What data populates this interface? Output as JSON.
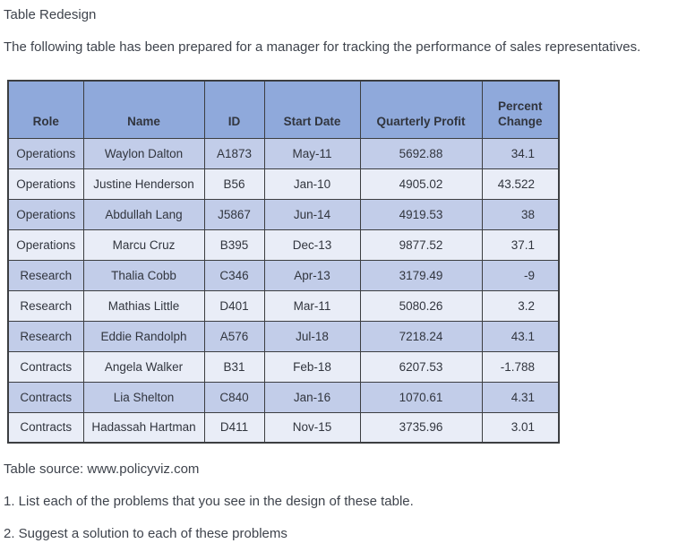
{
  "page": {
    "title": "Table Redesign",
    "intro": "The following table has been prepared for a manager for tracking the performance of sales representatives.",
    "source": "Table source: www.policyviz.com",
    "question_1": "1. List each of the problems that you see in the design of these table.",
    "question_2": "2. Suggest a solution to each of these problems"
  },
  "table": {
    "columns": [
      "Role",
      "Name",
      "ID",
      "Start Date",
      "Quarterly Profit",
      "Percent Change"
    ],
    "rows": [
      [
        "Operations",
        "Waylon Dalton",
        "A1873",
        "May-11",
        "5692.88",
        "34.1"
      ],
      [
        "Operations",
        "Justine Henderson",
        "B56",
        "Jan-10",
        "4905.02",
        "43.522"
      ],
      [
        "Operations",
        "Abdullah Lang",
        "J5867",
        "Jun-14",
        "4919.53",
        "38"
      ],
      [
        "Operations",
        "Marcu Cruz",
        "B395",
        "Dec-13",
        "9877.52",
        "37.1"
      ],
      [
        "Research",
        "Thalia Cobb",
        "C346",
        "Apr-13",
        "3179.49",
        "-9"
      ],
      [
        "Research",
        "Mathias Little",
        "D401",
        "Mar-11",
        "5080.26",
        "3.2"
      ],
      [
        "Research",
        "Eddie Randolph",
        "A576",
        "Jul-18",
        "7218.24",
        "43.1"
      ],
      [
        "Contracts",
        "Angela Walker",
        "B31",
        "Feb-18",
        "6207.53",
        "-1.788"
      ],
      [
        "Contracts",
        "Lia Shelton",
        "C840",
        "Jan-16",
        "1070.61",
        "4.31"
      ],
      [
        "Contracts",
        "Hadassah Hartman",
        "D411",
        "Nov-15",
        "3735.96",
        "3.01"
      ]
    ]
  },
  "colors": {
    "header_bg": "#8fa9db",
    "row_odd_bg": "#c2cde9",
    "row_even_bg": "#e9edf7",
    "grid_border": "#3c3e41",
    "text": "#3e434c"
  }
}
